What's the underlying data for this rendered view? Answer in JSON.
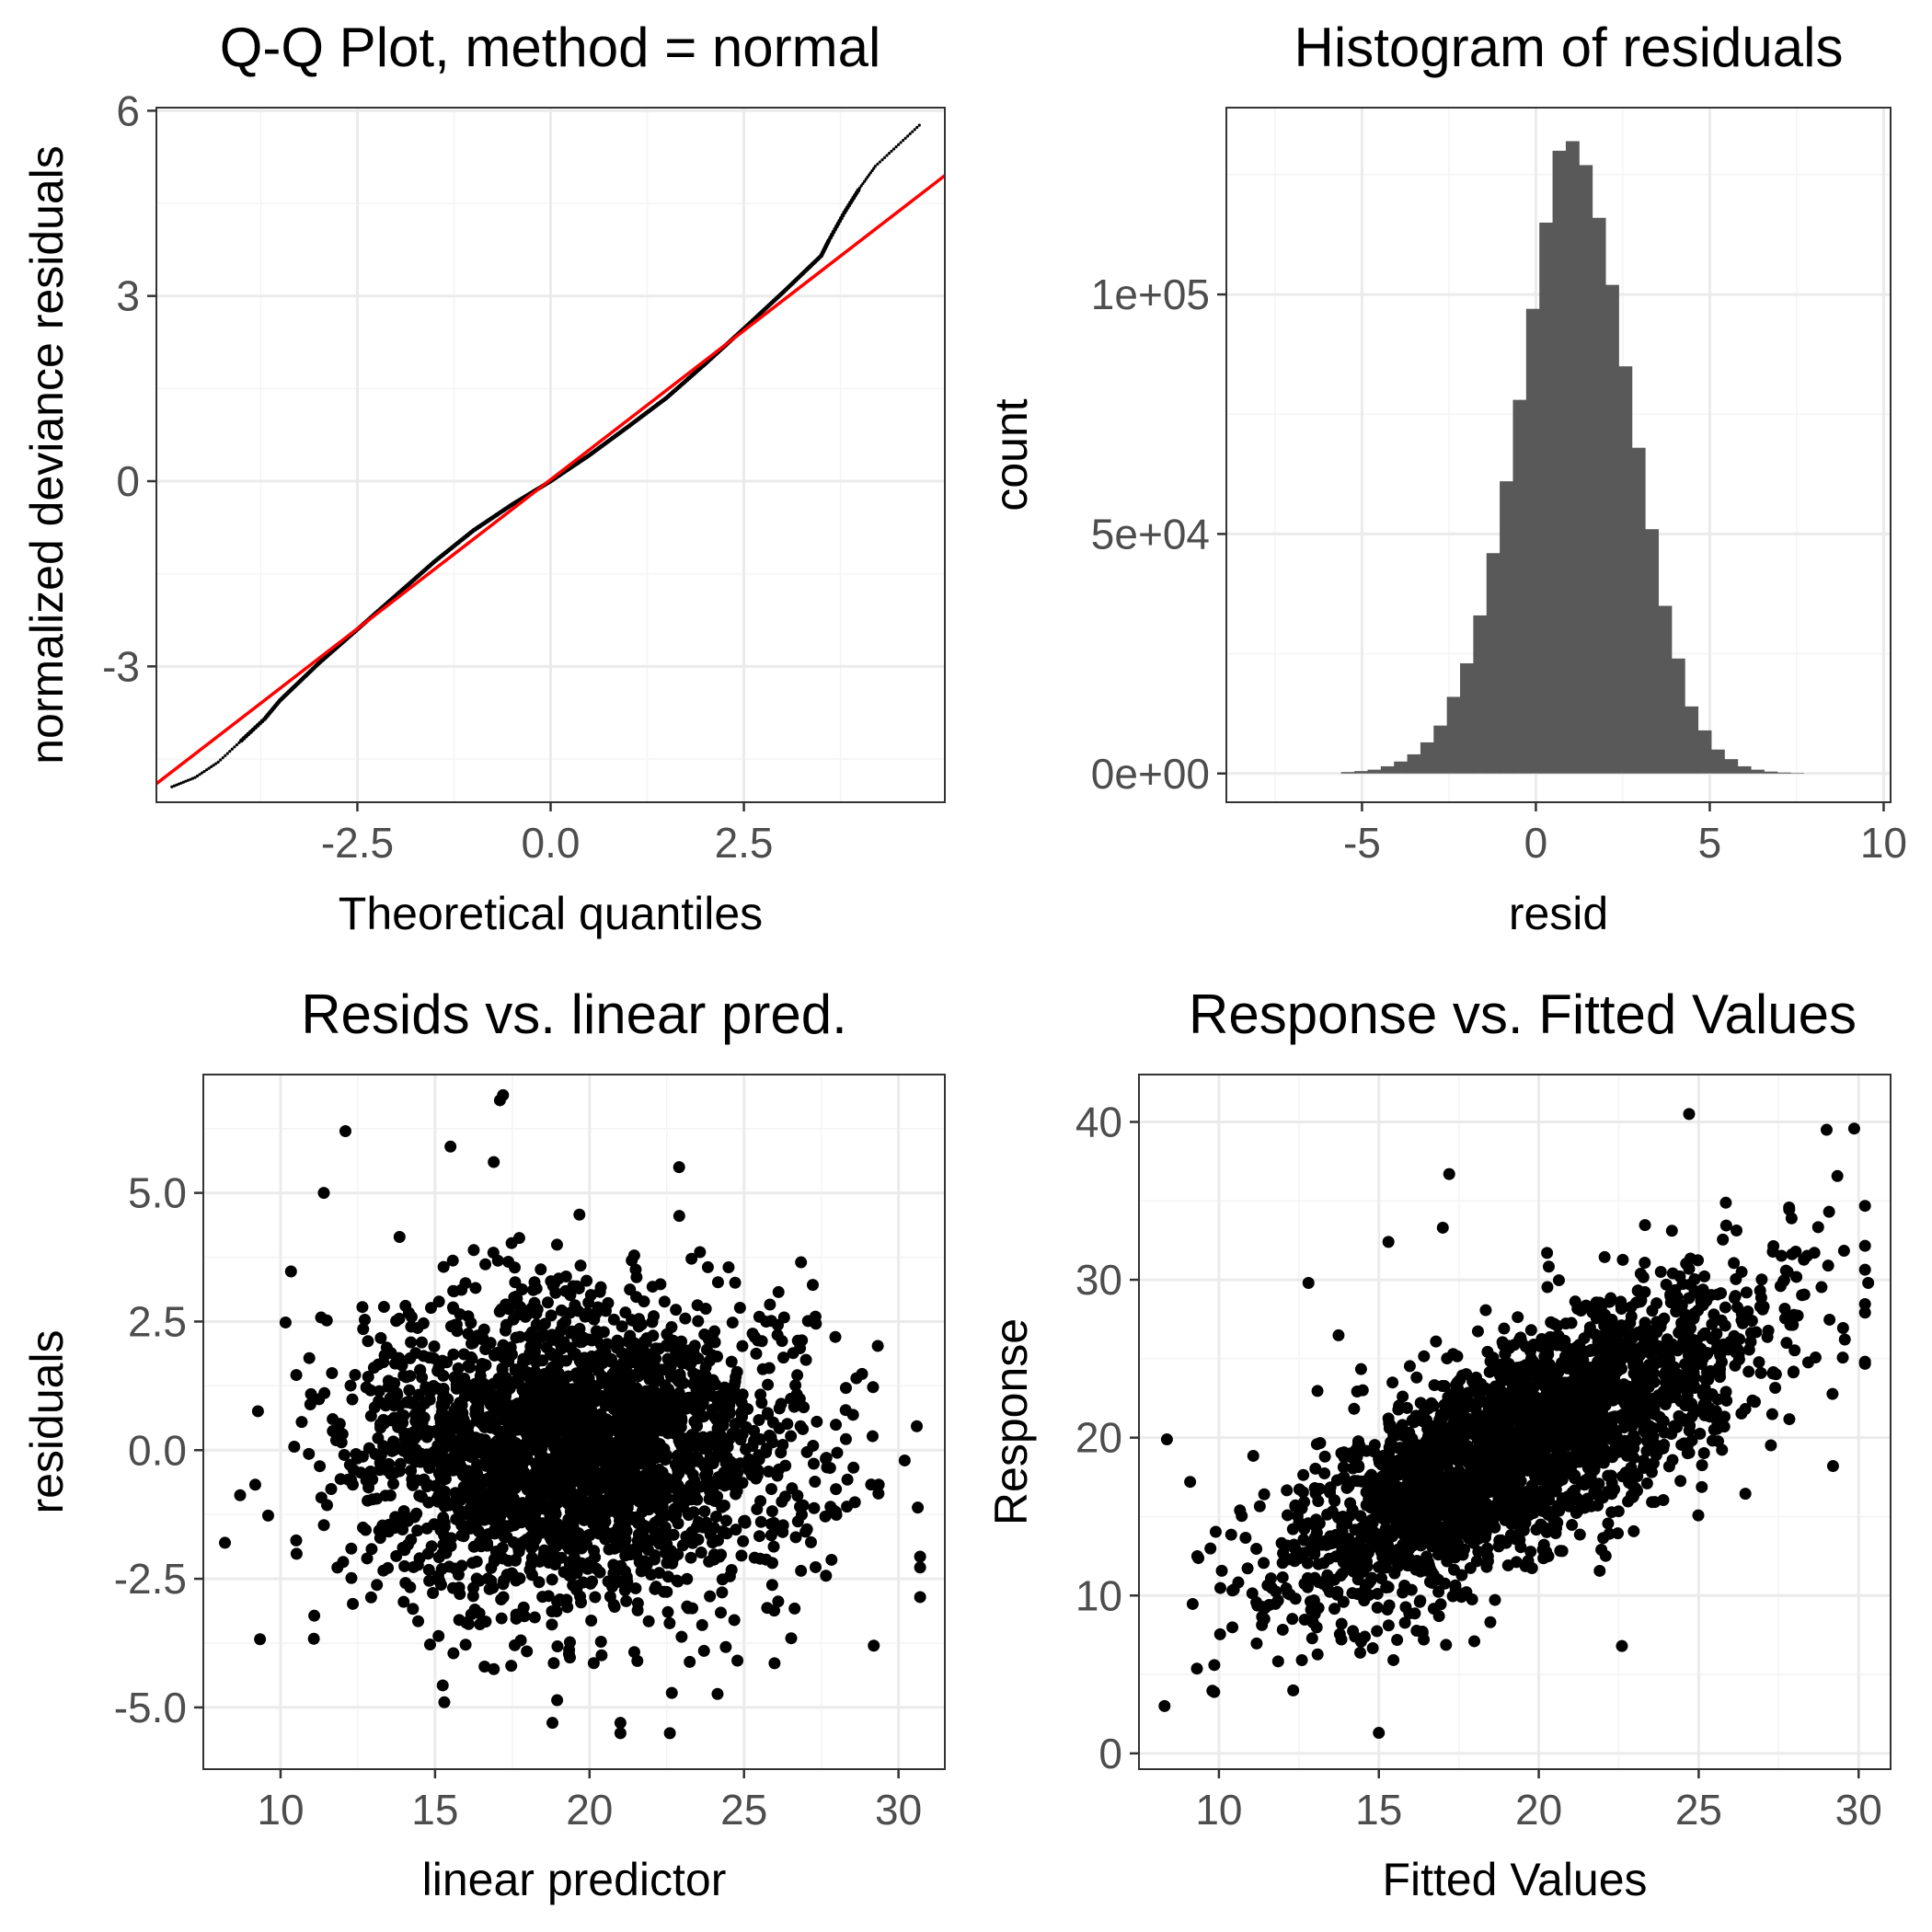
{
  "colors": {
    "points": "#000000",
    "bars": "#595959",
    "refline": "#ff0000",
    "tick_text": "#4d4d4d",
    "grid": "#ebebeb"
  },
  "chart_data": [
    {
      "id": "qq",
      "type": "line",
      "title": "Q-Q Plot, method = normal",
      "xlabel": "Theoretical quantiles",
      "ylabel": "normalized deviance residuals",
      "xlim": [
        -5.1,
        5.1
      ],
      "ylim": [
        -5.2,
        6.05
      ],
      "xticks": [
        -2.5,
        0.0,
        2.5
      ],
      "xtick_labels": [
        "-2.5",
        "0.0",
        "2.5"
      ],
      "yticks": [
        -3,
        0,
        3,
        6
      ],
      "ytick_labels": [
        "-3",
        "0",
        "3",
        "6"
      ],
      "series": [
        {
          "name": "sample quantiles",
          "style": "points",
          "x": [
            -4.9,
            -4.6,
            -4.3,
            -4.0,
            -3.7,
            -3.5,
            -3.0,
            -2.5,
            -2.0,
            -1.5,
            -1.0,
            -0.5,
            0.0,
            0.5,
            1.0,
            1.5,
            2.0,
            2.5,
            3.0,
            3.5,
            3.6,
            3.8,
            4.0,
            4.2,
            4.5,
            4.8
          ],
          "y": [
            -4.95,
            -4.8,
            -4.55,
            -4.2,
            -3.85,
            -3.55,
            -2.95,
            -2.4,
            -1.85,
            -1.3,
            -0.8,
            -0.38,
            0.0,
            0.42,
            0.88,
            1.35,
            1.9,
            2.47,
            3.05,
            3.65,
            3.9,
            4.35,
            4.75,
            5.1,
            5.45,
            5.8
          ]
        },
        {
          "name": "reference line",
          "style": "line",
          "x": [
            -5.1,
            5.1
          ],
          "y": [
            -4.9,
            4.95
          ]
        }
      ]
    },
    {
      "id": "hist",
      "type": "bar",
      "title": "Histogram of residuals",
      "xlabel": "resid",
      "ylabel": "count",
      "xlim": [
        -8.9,
        10.2
      ],
      "ylim": [
        -6000,
        139000
      ],
      "xticks": [
        -5,
        0,
        5,
        10
      ],
      "xtick_labels": [
        "-5",
        "0",
        "5",
        "10"
      ],
      "yticks": [
        0,
        50000,
        100000
      ],
      "ytick_labels": [
        "0e+00",
        "5e+04",
        "1e+05"
      ],
      "bin_start": -5.6,
      "bin_width": 0.38,
      "counts": [
        300,
        500,
        800,
        1500,
        2500,
        4000,
        6500,
        10000,
        16000,
        23000,
        33000,
        46000,
        61000,
        78000,
        97000,
        115000,
        130000,
        132000,
        127000,
        116000,
        102000,
        85000,
        68000,
        51000,
        35000,
        24000,
        14000,
        9000,
        5000,
        3000,
        1500,
        800,
        400,
        200,
        100
      ]
    },
    {
      "id": "resid_vs_lp",
      "type": "scatter",
      "title": "Resids vs. linear pred.",
      "xlabel": "linear predictor",
      "ylabel": "residuals",
      "xlim": [
        7.5,
        31.5
      ],
      "ylim": [
        -6.2,
        7.3
      ],
      "xticks": [
        10,
        15,
        20,
        25,
        30
      ],
      "xtick_labels": [
        "10",
        "15",
        "20",
        "25",
        "30"
      ],
      "yticks": [
        -5.0,
        -2.5,
        0.0,
        2.5,
        5.0
      ],
      "ytick_labels": [
        "-5.0",
        "-2.5",
        "0.0",
        "2.5",
        "5.0"
      ],
      "cloud": {
        "x_center": 19.5,
        "x_sd": 3.6,
        "y_center": 0.0,
        "y_sd": 1.5,
        "n_points": 2600,
        "seed": 7
      },
      "outliers": {
        "x": [
          17.2,
          17.1,
          12.1,
          15.5,
          16.9,
          22.9,
          21.0,
          21.0,
          22.6,
          18.8,
          8.2,
          30.2,
          11.4,
          29.2,
          15.3
        ],
        "y": [
          6.9,
          6.8,
          6.2,
          5.9,
          5.6,
          5.5,
          -5.5,
          -5.3,
          -5.5,
          -5.3,
          -1.8,
          -0.2,
          5.0,
          -3.8,
          -4.9
        ]
      }
    },
    {
      "id": "resp_vs_fit",
      "type": "scatter",
      "title": "Response vs. Fitted Values",
      "xlabel": "Fitted Values",
      "ylabel": "Response",
      "xlim": [
        7.5,
        31.0
      ],
      "ylim": [
        -1,
        43
      ],
      "xticks": [
        10,
        15,
        20,
        25,
        30
      ],
      "xtick_labels": [
        "10",
        "15",
        "20",
        "25",
        "30"
      ],
      "yticks": [
        0,
        10,
        20,
        30,
        40
      ],
      "ytick_labels": [
        "0",
        "10",
        "20",
        "30",
        "40"
      ],
      "cloud": {
        "x_center": 19.5,
        "x_sd": 3.6,
        "slope": 1.0,
        "intercept": 0.0,
        "y_sd": 3.4,
        "n_points": 2600,
        "seed": 11
      },
      "outliers": {
        "x": [
          8.3,
          24.7,
          30.3,
          29.0,
          15.0,
          15.3,
          17.2,
          12.8,
          22.6,
          9.1,
          29.2,
          17.0
        ],
        "y": [
          3.0,
          40.5,
          29.8,
          39.5,
          1.3,
          32.4,
          36.7,
          29.8,
          6.8,
          17.2,
          18.2,
          33.3
        ]
      }
    }
  ]
}
